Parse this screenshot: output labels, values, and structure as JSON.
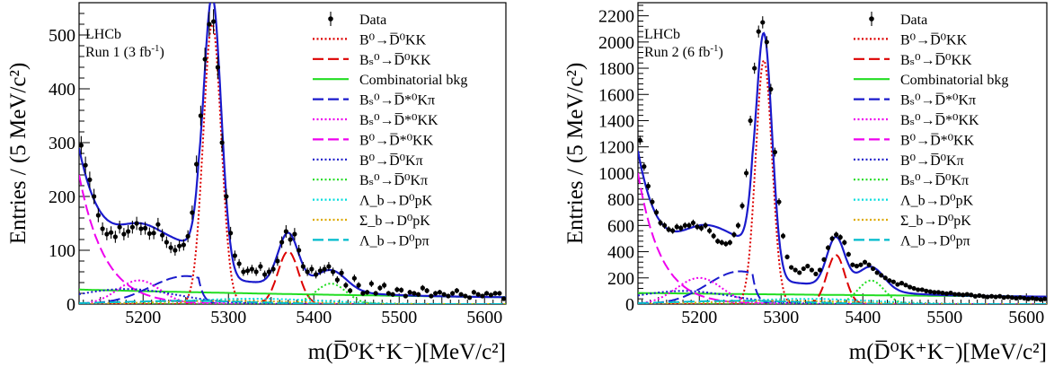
{
  "chart_data": [
    {
      "type": "scatter",
      "experiment": "LHCb",
      "run_label": "Run 1 (3 fb",
      "run_label_sup": "-1",
      "run_label_end": ")",
      "ylabel": "Entries / (5 MeV/c²)",
      "xlabel": "m(D̅⁰K⁺K⁻)[MeV/c²]",
      "xlim": [
        5125,
        5625
      ],
      "ylim": [
        0,
        560
      ],
      "yticks": [
        0,
        100,
        200,
        300,
        400,
        500
      ],
      "xticks": [
        5200,
        5300,
        5400,
        5500,
        5600
      ],
      "data": {
        "x": [
          5127.5,
          5132.5,
          5137.5,
          5142.5,
          5147.5,
          5152.5,
          5157.5,
          5162.5,
          5167.5,
          5172.5,
          5177.5,
          5182.5,
          5187.5,
          5192.5,
          5197.5,
          5202.5,
          5207.5,
          5212.5,
          5217.5,
          5222.5,
          5227.5,
          5232.5,
          5237.5,
          5242.5,
          5247.5,
          5252.5,
          5257.5,
          5262.5,
          5267.5,
          5272.5,
          5277.5,
          5282.5,
          5287.5,
          5292.5,
          5297.5,
          5302.5,
          5307.5,
          5312.5,
          5317.5,
          5322.5,
          5327.5,
          5332.5,
          5337.5,
          5342.5,
          5347.5,
          5352.5,
          5357.5,
          5362.5,
          5367.5,
          5372.5,
          5377.5,
          5382.5,
          5387.5,
          5392.5,
          5397.5,
          5402.5,
          5407.5,
          5412.5,
          5417.5,
          5422.5,
          5427.5,
          5432.5,
          5437.5,
          5442.5,
          5447.5,
          5452.5,
          5457.5,
          5462.5,
          5467.5,
          5472.5,
          5477.5,
          5482.5,
          5487.5,
          5492.5,
          5497.5,
          5502.5,
          5507.5,
          5512.5,
          5517.5,
          5522.5,
          5527.5,
          5532.5,
          5537.5,
          5542.5,
          5547.5,
          5552.5,
          5557.5,
          5562.5,
          5567.5,
          5572.5,
          5577.5,
          5582.5,
          5587.5,
          5592.5,
          5597.5,
          5602.5,
          5607.5,
          5612.5,
          5617.5,
          5622.5
        ],
        "y": [
          295,
          258,
          231,
          200,
          165,
          140,
          130,
          133,
          125,
          143,
          130,
          135,
          143,
          150,
          140,
          141,
          131,
          132,
          148,
          128,
          115,
          105,
          100,
          108,
          110,
          126,
          170,
          260,
          350,
          455,
          520,
          525,
          440,
          300,
          200,
          132,
          90,
          75,
          60,
          62,
          65,
          60,
          70,
          55,
          60,
          65,
          80,
          115,
          135,
          120,
          130,
          100,
          70,
          60,
          65,
          55,
          62,
          65,
          70,
          60,
          45,
          58,
          35,
          25,
          48,
          35,
          20,
          22,
          38,
          20,
          30,
          35,
          20,
          18,
          27,
          26,
          15,
          22,
          20,
          18,
          30,
          25,
          15,
          20,
          22,
          18,
          15,
          20,
          25,
          18,
          15,
          12,
          22,
          18,
          15,
          20,
          17,
          20,
          20,
          10
        ]
      },
      "legend": [
        {
          "label": "Data",
          "color": "#000000",
          "style": "marker"
        },
        {
          "label": "B⁰→D̅⁰KK",
          "color": "#dd0000",
          "style": "dotted"
        },
        {
          "label": "Bₛ⁰→D̅⁰KK",
          "color": "#dd0000",
          "style": "dashed"
        },
        {
          "label": "Combinatorial bkg",
          "color": "#22dd22",
          "style": "solid"
        },
        {
          "label": "Bₛ⁰→D̅*⁰Kπ",
          "color": "#1a1acc",
          "style": "dashed"
        },
        {
          "label": "Bₛ⁰→D̅*⁰KK",
          "color": "#ee00ee",
          "style": "dotted"
        },
        {
          "label": "B⁰→D̅*⁰KK",
          "color": "#ee00ee",
          "style": "dashed"
        },
        {
          "label": "B⁰→D̅⁰Kπ",
          "color": "#1a1acc",
          "style": "dotted"
        },
        {
          "label": "Bₛ⁰→D̅⁰Kπ",
          "color": "#22dd22",
          "style": "dotted"
        },
        {
          "label": "Λ_b→D⁰pK",
          "color": "#00dddd",
          "style": "dotted"
        },
        {
          "label": "Σ_b→D⁰pK",
          "color": "#ddaa00",
          "style": "dotted"
        },
        {
          "label": "Λ_b→D⁰pπ",
          "color": "#00bbcc",
          "style": "dashed"
        }
      ],
      "components": {
        "comb": {
          "a": 27,
          "b": 0.0015
        },
        "sig": {
          "A": 520,
          "mu": 5281,
          "s": 10.5
        },
        "bs": {
          "A": 98,
          "mu": 5370,
          "s": 12
        },
        "dstkpi": {
          "A": 52,
          "mu": 5250,
          "s": 42
        },
        "bsdstkk": {
          "A": 44,
          "mu": 5195,
          "s": 25
        },
        "bdstkk": {
          "A": 240,
          "tau": 30
        },
        "bdkpi": {
          "A": 28,
          "mu": 5180,
          "s": 60
        },
        "bsdkpi": {
          "A": 38,
          "mu": 5420,
          "s": 18
        },
        "lb1": {
          "A": 10,
          "mu": 5330,
          "s": 80
        },
        "sb": {
          "A": 6,
          "mu": 5300,
          "s": 80
        },
        "lb2": {
          "A": 6,
          "mu": 5250,
          "s": 80
        }
      }
    },
    {
      "type": "scatter",
      "experiment": "LHCb",
      "run_label": "Run 2 (6 fb",
      "run_label_sup": "-1",
      "run_label_end": ")",
      "ylabel": "Entries / (5 MeV/c²)",
      "xlabel": "m(D̅⁰K⁺K⁻)[MeV/c²]",
      "xlim": [
        5125,
        5625
      ],
      "ylim": [
        0,
        2300
      ],
      "yticks": [
        0,
        200,
        400,
        600,
        800,
        1000,
        1200,
        1400,
        1600,
        1800,
        2000,
        2200
      ],
      "xticks": [
        5200,
        5300,
        5400,
        5500,
        5600
      ],
      "data": {
        "x": [
          5127.5,
          5132.5,
          5137.5,
          5142.5,
          5147.5,
          5152.5,
          5157.5,
          5162.5,
          5167.5,
          5172.5,
          5177.5,
          5182.5,
          5187.5,
          5192.5,
          5197.5,
          5202.5,
          5207.5,
          5212.5,
          5217.5,
          5222.5,
          5227.5,
          5232.5,
          5237.5,
          5242.5,
          5247.5,
          5252.5,
          5257.5,
          5262.5,
          5267.5,
          5272.5,
          5277.5,
          5282.5,
          5287.5,
          5292.5,
          5297.5,
          5302.5,
          5307.5,
          5312.5,
          5317.5,
          5322.5,
          5327.5,
          5332.5,
          5337.5,
          5342.5,
          5347.5,
          5352.5,
          5357.5,
          5362.5,
          5367.5,
          5372.5,
          5377.5,
          5382.5,
          5387.5,
          5392.5,
          5397.5,
          5402.5,
          5407.5,
          5412.5,
          5417.5,
          5422.5,
          5427.5,
          5432.5,
          5437.5,
          5442.5,
          5447.5,
          5452.5,
          5457.5,
          5462.5,
          5467.5,
          5472.5,
          5477.5,
          5482.5,
          5487.5,
          5492.5,
          5497.5,
          5502.5,
          5507.5,
          5512.5,
          5517.5,
          5522.5,
          5527.5,
          5532.5,
          5537.5,
          5542.5,
          5547.5,
          5552.5,
          5557.5,
          5562.5,
          5567.5,
          5572.5,
          5577.5,
          5582.5,
          5587.5,
          5592.5,
          5597.5,
          5602.5,
          5607.5,
          5612.5,
          5617.5,
          5622.5
        ],
        "y": [
          1250,
          1050,
          900,
          780,
          700,
          620,
          600,
          570,
          560,
          590,
          580,
          600,
          600,
          620,
          590,
          580,
          600,
          560,
          520,
          480,
          470,
          460,
          470,
          530,
          600,
          750,
          1000,
          1400,
          1800,
          2080,
          2150,
          2000,
          1640,
          1160,
          780,
          520,
          360,
          280,
          260,
          240,
          270,
          290,
          260,
          230,
          260,
          340,
          430,
          500,
          530,
          510,
          470,
          380,
          300,
          290,
          300,
          320,
          300,
          270,
          240,
          220,
          200,
          180,
          170,
          150,
          160,
          145,
          130,
          120,
          110,
          110,
          100,
          95,
          90,
          90,
          85,
          80,
          85,
          75,
          75,
          70,
          75,
          70,
          60,
          65,
          60,
          55,
          60,
          55,
          60,
          50,
          55,
          50,
          45,
          50,
          45,
          40,
          45,
          40,
          35,
          40
        ]
      },
      "legend": [
        {
          "label": "Data",
          "color": "#000000",
          "style": "marker"
        },
        {
          "label": "B⁰→D̅⁰KK",
          "color": "#dd0000",
          "style": "dotted"
        },
        {
          "label": "Bₛ⁰→D̅⁰KK",
          "color": "#dd0000",
          "style": "dashed"
        },
        {
          "label": "Combinatorial bkg",
          "color": "#22dd22",
          "style": "solid"
        },
        {
          "label": "Bₛ⁰→D̅*⁰Kπ",
          "color": "#1a1acc",
          "style": "dashed"
        },
        {
          "label": "Bₛ⁰→D̅*⁰KK",
          "color": "#ee00ee",
          "style": "dotted"
        },
        {
          "label": "B⁰→D̅*⁰KK",
          "color": "#ee00ee",
          "style": "dashed"
        },
        {
          "label": "B⁰→D̅⁰Kπ",
          "color": "#1a1acc",
          "style": "dotted"
        },
        {
          "label": "Bₛ⁰→D̅⁰Kπ",
          "color": "#22dd22",
          "style": "dotted"
        },
        {
          "label": "Λ_b→D⁰pK",
          "color": "#00dddd",
          "style": "dotted"
        },
        {
          "label": "Σ_b→D⁰pK",
          "color": "#ddaa00",
          "style": "dotted"
        },
        {
          "label": "Λ_b→D⁰pπ",
          "color": "#00bbcc",
          "style": "dashed"
        }
      ],
      "components": {
        "comb": {
          "a": 85,
          "b": 0.0008
        },
        "sig": {
          "A": 1860,
          "mu": 5279,
          "s": 10
        },
        "bs": {
          "A": 375,
          "mu": 5367,
          "s": 11
        },
        "dstkpi": {
          "A": 250,
          "mu": 5250,
          "s": 40
        },
        "bsdstkk": {
          "A": 200,
          "mu": 5200,
          "s": 28
        },
        "bdstkk": {
          "A": 1000,
          "tau": 28
        },
        "bdkpi": {
          "A": 100,
          "mu": 5180,
          "s": 60
        },
        "bsdkpi": {
          "A": 180,
          "mu": 5410,
          "s": 16
        },
        "lb1": {
          "A": 40,
          "mu": 5330,
          "s": 80
        },
        "sb": {
          "A": 25,
          "mu": 5300,
          "s": 80
        },
        "lb2": {
          "A": 25,
          "mu": 5250,
          "s": 80
        }
      }
    }
  ]
}
